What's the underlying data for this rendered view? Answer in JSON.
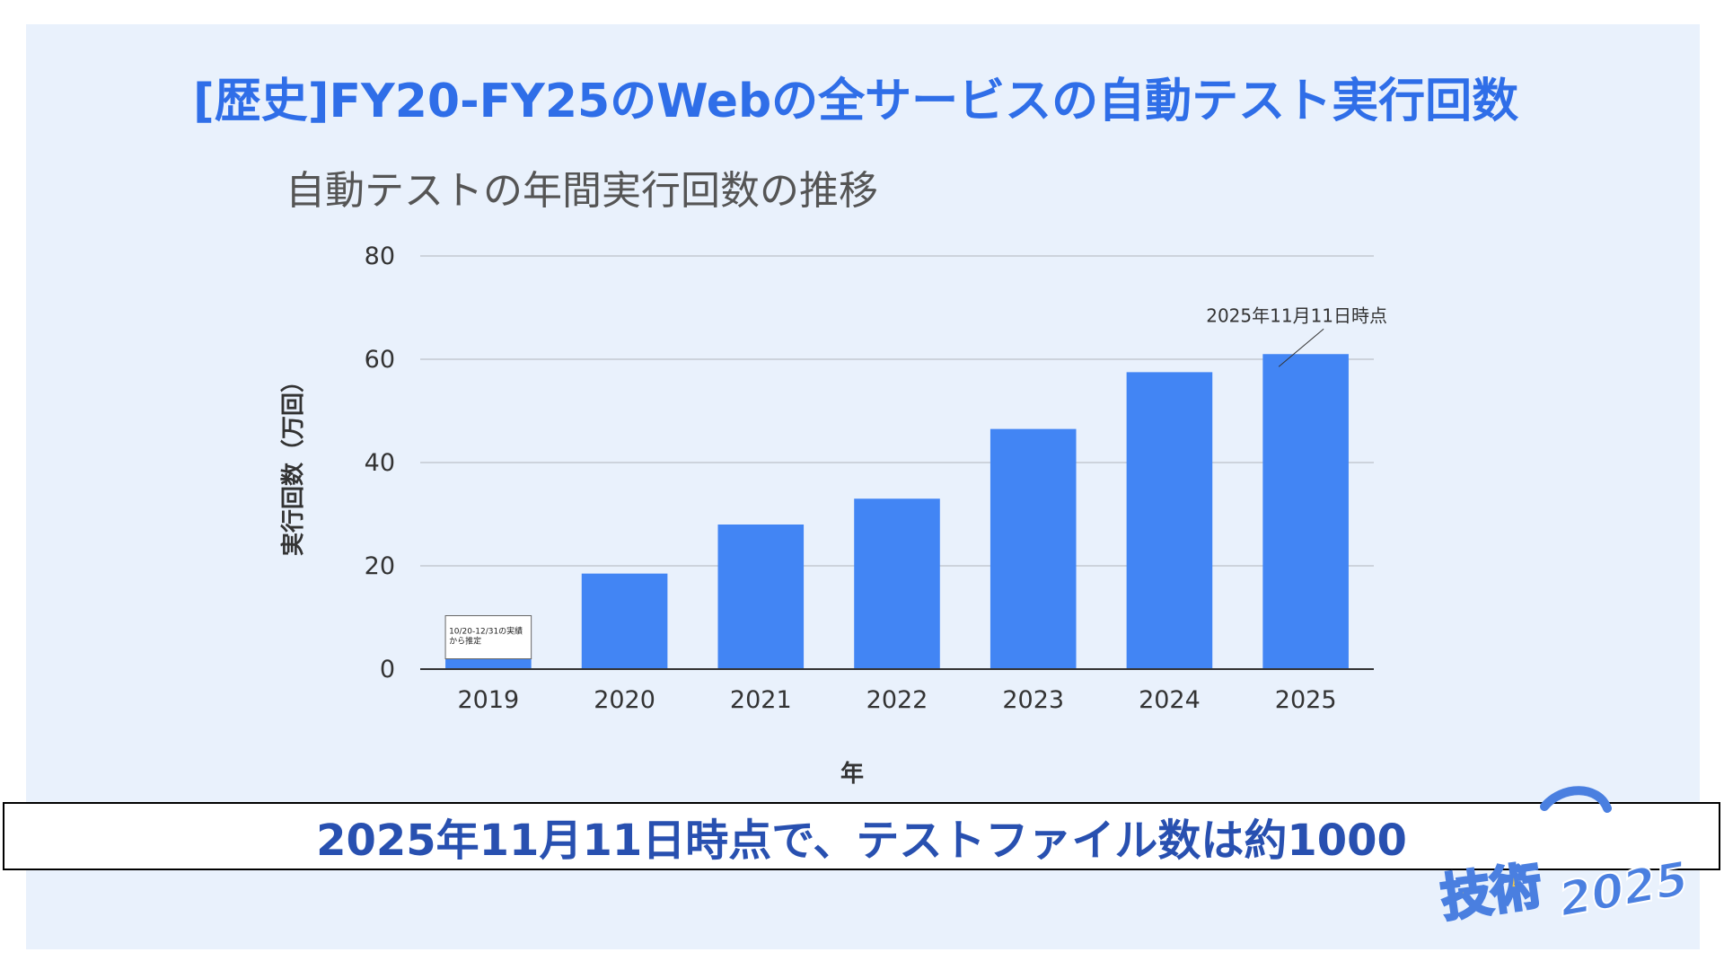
{
  "slide": {
    "title": "[歴史]FY20-FY25のWebの全サービスの自動テスト実行回数",
    "banner": "2025年11月11日時点で、テストファイル数は約1000"
  },
  "colors": {
    "bar": "#4285f4",
    "slide_background": "#e9f1fc",
    "title": "#2f6ee8",
    "banner_text": "#2850b0"
  },
  "chart_data": {
    "type": "bar",
    "title": "自動テストの年間実行回数の推移",
    "xlabel": "年",
    "ylabel": "実行回数（万回）",
    "categories": [
      "2019",
      "2020",
      "2021",
      "2022",
      "2023",
      "2024",
      "2025"
    ],
    "values": [
      2,
      18.5,
      28,
      33,
      46.5,
      57.5,
      61
    ],
    "ylim": [
      0,
      80
    ],
    "yticks": [
      "0",
      "20",
      "40",
      "60",
      "80"
    ],
    "grid": true,
    "annotations": [
      {
        "category": "2025",
        "text": "2025年11月11日時点"
      },
      {
        "category": "2019",
        "text_lines": [
          "10/20-12/31の実績",
          "から推定"
        ]
      }
    ]
  },
  "logo": {
    "text": "技術",
    "year": "2025"
  }
}
